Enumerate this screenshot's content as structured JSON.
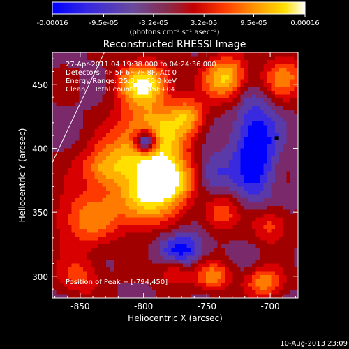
{
  "chart_data": {
    "type": "heatmap",
    "title": "Reconstructed RHESSI Image",
    "colorbar": {
      "tick_labels": [
        "-0.00016",
        "-9.5e-05",
        "-3.2e-05",
        "3.2e-05",
        "9.5e-05",
        "0.00016"
      ],
      "tick_values": [
        -0.00016,
        -9.5e-05,
        -3.2e-05,
        3.2e-05,
        9.5e-05,
        0.00016
      ],
      "range": [
        -0.00016,
        0.00016
      ],
      "unit_label": "(photons cm⁻² s⁻¹ asec⁻²)",
      "colormap": [
        "#0000ff",
        "#5a3aa8",
        "#8a2a4a",
        "#c00000",
        "#ff3a00",
        "#ff9400",
        "#ffe000",
        "#ffffff"
      ]
    },
    "xlabel": "Heliocentric X (arcsec)",
    "ylabel": "Heliocentric Y (arcsec)",
    "xlim": [
      -872,
      -678
    ],
    "ylim": [
      283,
      475
    ],
    "xticks": [
      -850,
      -800,
      -750,
      -700
    ],
    "yticks": [
      300,
      350,
      400,
      450
    ],
    "annotations": {
      "time_range": "27-Apr-2011 04:19:38.000 to 04:24:36.000",
      "detectors": "Detectors: 4F 5F 6F 7F 8F, Att 0",
      "energy_range": "Energy Range: 25.0 to 50.0 keV",
      "clean": "Clean    Total counts: 1.45E+04",
      "peak": "Position of Peak = [-794,450]"
    },
    "limb_line": [
      [
        -872,
        389
      ],
      [
        -831,
        475
      ]
    ],
    "marker": {
      "x": -695,
      "y": 408
    },
    "footer_date": "10-Aug-2013 23:09",
    "sources": [
      {
        "x": -795,
        "y": 405,
        "sx": 18,
        "sy": 18,
        "amp": 1.0
      },
      {
        "x": -798,
        "y": 405,
        "sx": 7,
        "sy": 7,
        "amp": -1.2
      },
      {
        "x": -780,
        "y": 375,
        "sx": 14,
        "sy": 12,
        "amp": 0.9
      },
      {
        "x": -800,
        "y": 358,
        "sx": 16,
        "sy": 14,
        "amp": 0.7
      },
      {
        "x": -830,
        "y": 385,
        "sx": 14,
        "sy": 12,
        "amp": 0.6
      },
      {
        "x": -845,
        "y": 345,
        "sx": 18,
        "sy": 16,
        "amp": 0.5
      },
      {
        "x": -800,
        "y": 450,
        "sx": 14,
        "sy": 12,
        "amp": 0.85
      },
      {
        "x": -735,
        "y": 455,
        "sx": 12,
        "sy": 12,
        "amp": 0.75
      },
      {
        "x": -690,
        "y": 455,
        "sx": 12,
        "sy": 12,
        "amp": 0.5
      },
      {
        "x": -765,
        "y": 425,
        "sx": 10,
        "sy": 10,
        "amp": 0.55
      },
      {
        "x": -740,
        "y": 350,
        "sx": 10,
        "sy": 10,
        "amp": 0.45
      },
      {
        "x": -700,
        "y": 340,
        "sx": 10,
        "sy": 10,
        "amp": 0.4
      },
      {
        "x": -745,
        "y": 300,
        "sx": 10,
        "sy": 8,
        "amp": 0.5
      },
      {
        "x": -705,
        "y": 295,
        "sx": 10,
        "sy": 8,
        "amp": 0.55
      },
      {
        "x": -850,
        "y": 300,
        "sx": 12,
        "sy": 10,
        "amp": 0.35
      },
      {
        "x": -775,
        "y": 305,
        "sx": 10,
        "sy": 8,
        "amp": 0.4
      },
      {
        "x": -712,
        "y": 400,
        "sx": 12,
        "sy": 28,
        "amp": -0.6
      },
      {
        "x": -770,
        "y": 320,
        "sx": 12,
        "sy": 10,
        "amp": -0.5
      },
      {
        "x": -745,
        "y": 380,
        "sx": 10,
        "sy": 12,
        "amp": -0.35
      }
    ]
  }
}
